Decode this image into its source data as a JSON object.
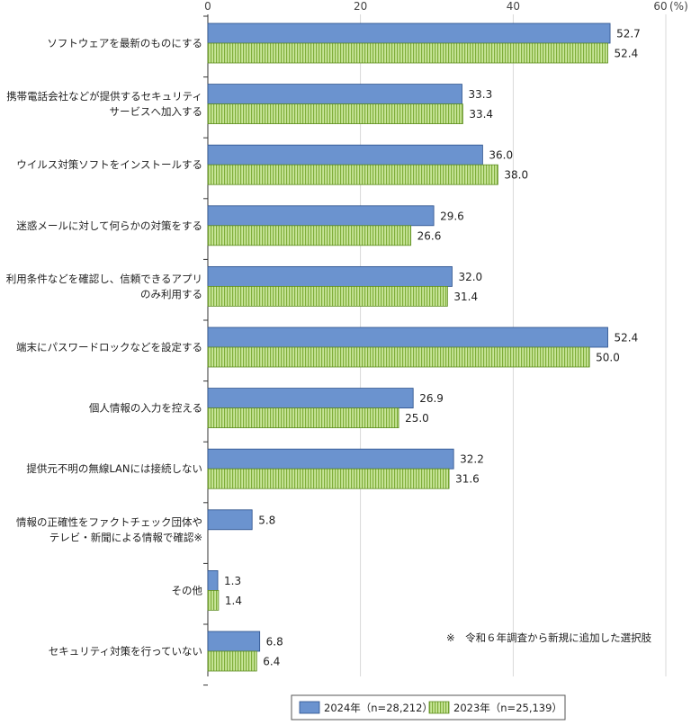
{
  "chart_data": {
    "type": "bar",
    "orientation": "horizontal",
    "unit": "(%)",
    "xlim": [
      0,
      60
    ],
    "ticks": [
      "0",
      "20",
      "40",
      "60"
    ],
    "grid": true,
    "categories": [
      "ソフトウェアを最新のものにする",
      "携帯電話会社などが提供するセキュリティ\nサービスへ加入する",
      "ウイルス対策ソフトをインストールする",
      "迷惑メールに対して何らかの対策をする",
      "利用条件などを確認し、信頼できるアプリ\nのみ利用する",
      "端末にパスワードロックなどを設定する",
      "個人情報の入力を控える",
      "提供元不明の無線LANには接続しない",
      "情報の正確性をファクトチェック団体や\nテレビ・新聞による情報で確認※",
      "その他",
      "セキュリティ対策を行っていない"
    ],
    "series": [
      {
        "name": "2024年（n=28,212）",
        "color": "#6b93cf",
        "values": [
          52.7,
          33.3,
          36.0,
          29.6,
          32.0,
          52.4,
          26.9,
          32.2,
          5.8,
          1.3,
          6.8
        ],
        "labels": [
          "52.7",
          "33.3",
          "36.0",
          "29.6",
          "32.0",
          "52.4",
          "26.9",
          "32.2",
          "5.8",
          "1.3",
          "6.8"
        ]
      },
      {
        "name": "2023年（n=25,139）",
        "color": "#b7dc7a",
        "pattern": "vertical-stripes",
        "values": [
          52.4,
          33.4,
          38.0,
          26.6,
          31.4,
          50.0,
          25.0,
          31.6,
          null,
          1.4,
          6.4
        ],
        "labels": [
          "52.4",
          "33.4",
          "38.0",
          "26.6",
          "31.4",
          "50.0",
          "25.0",
          "31.6",
          "",
          "1.4",
          "6.4"
        ]
      }
    ],
    "note": "※　令和６年調査から新規に追加した選択肢",
    "legend_position": "bottom"
  }
}
